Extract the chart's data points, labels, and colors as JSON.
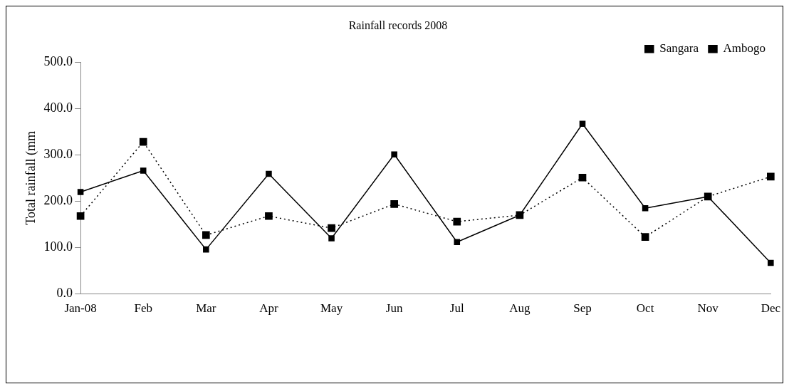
{
  "chart_data": {
    "type": "line",
    "title": "Rainfall records 2008",
    "ylabel": "Total rainfall (mm",
    "categories": [
      "Jan-08",
      "Feb",
      "Mar",
      "Apr",
      "May",
      "Jun",
      "Jul",
      "Aug",
      "Sep",
      "Oct",
      "Nov",
      "Dec"
    ],
    "series": [
      {
        "name": "Sangara",
        "color": "#000000",
        "line_style": "solid",
        "values": [
          220,
          266,
          96,
          259,
          120,
          301,
          112,
          170,
          367,
          185,
          210,
          67
        ]
      },
      {
        "name": "Ambogo",
        "color": "#000000",
        "line_style": "dotted",
        "values": [
          168,
          328,
          127,
          168,
          142,
          194,
          156,
          170,
          251,
          123,
          210,
          253
        ]
      }
    ],
    "ylim": [
      0,
      500
    ],
    "yticks": [
      {
        "value": 0,
        "label": "0.0"
      },
      {
        "value": 100,
        "label": "100.0"
      },
      {
        "value": 200,
        "label": "200.0"
      },
      {
        "value": 300,
        "label": "300.0"
      },
      {
        "value": 400,
        "label": "400.0"
      },
      {
        "value": 500,
        "label": "500.0"
      }
    ],
    "grid": false,
    "legend": "top right",
    "marker": "square"
  }
}
